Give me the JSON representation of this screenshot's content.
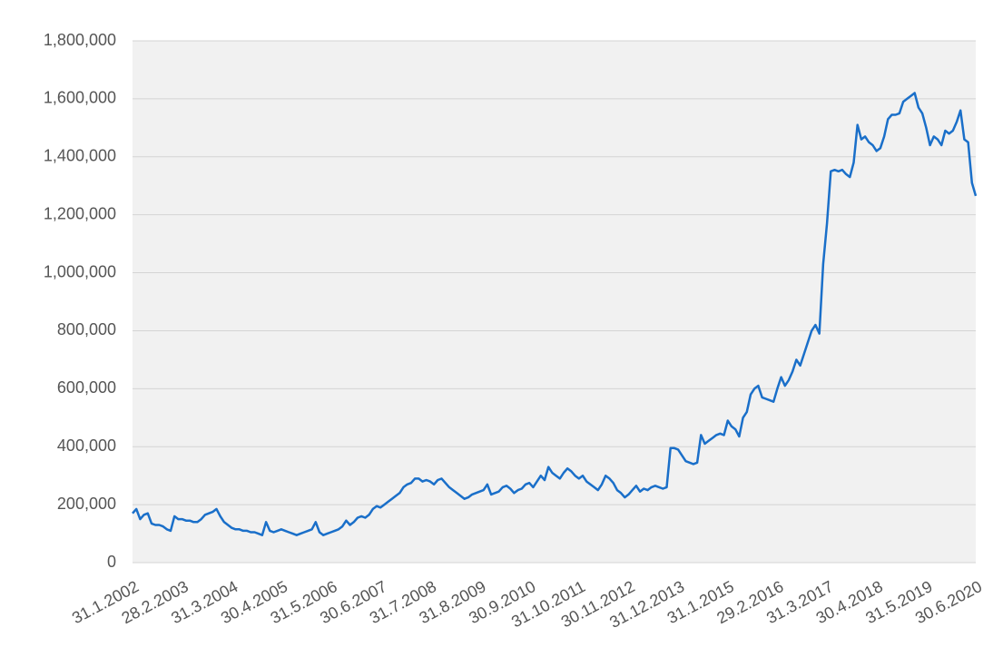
{
  "chart_data": {
    "type": "line",
    "categories": [
      "31.1.2002",
      null,
      null,
      null,
      null,
      null,
      null,
      null,
      null,
      null,
      null,
      null,
      null,
      "28.2.2003",
      null,
      null,
      null,
      null,
      null,
      null,
      null,
      null,
      null,
      null,
      null,
      null,
      "31.3.2004",
      null,
      null,
      null,
      null,
      null,
      null,
      null,
      null,
      null,
      null,
      null,
      null,
      "30.4.2005",
      null,
      null,
      null,
      null,
      null,
      null,
      null,
      null,
      null,
      null,
      null,
      null,
      "31.5.2006",
      null,
      null,
      null,
      null,
      null,
      null,
      null,
      null,
      null,
      null,
      null,
      null,
      "30.6.2007",
      null,
      null,
      null,
      null,
      null,
      null,
      null,
      null,
      null,
      null,
      null,
      null,
      "31.7.2008",
      null,
      null,
      null,
      null,
      null,
      null,
      null,
      null,
      null,
      null,
      null,
      null,
      "31.8.2009",
      null,
      null,
      null,
      null,
      null,
      null,
      null,
      null,
      null,
      null,
      null,
      null,
      "30.9.2010",
      null,
      null,
      null,
      null,
      null,
      null,
      null,
      null,
      null,
      null,
      null,
      null,
      "31.10.2011",
      null,
      null,
      null,
      null,
      null,
      null,
      null,
      null,
      null,
      null,
      null,
      null,
      "30.11.2012",
      null,
      null,
      null,
      null,
      null,
      null,
      null,
      null,
      null,
      null,
      null,
      null,
      "31.12.2013",
      null,
      null,
      null,
      null,
      null,
      null,
      null,
      null,
      null,
      null,
      null,
      null,
      "31.1.2015",
      null,
      null,
      null,
      null,
      null,
      null,
      null,
      null,
      null,
      null,
      null,
      null,
      "29.2.2016",
      null,
      null,
      null,
      null,
      null,
      null,
      null,
      null,
      null,
      null,
      null,
      null,
      "31.3.2017",
      null,
      null,
      null,
      null,
      null,
      null,
      null,
      null,
      null,
      null,
      null,
      null,
      "30.4.2018",
      null,
      null,
      null,
      null,
      null,
      null,
      null,
      null,
      null,
      null,
      null,
      null,
      "31.5.2019",
      null,
      null,
      null,
      null,
      null,
      null,
      null,
      null,
      null,
      null,
      null,
      null,
      "30.6.2020"
    ],
    "series": [
      {
        "color": "#1a6fc9",
        "values": [
          170000,
          185000,
          150000,
          165000,
          170000,
          135000,
          130000,
          130000,
          125000,
          115000,
          110000,
          160000,
          150000,
          150000,
          145000,
          145000,
          140000,
          140000,
          150000,
          165000,
          170000,
          175000,
          185000,
          160000,
          140000,
          130000,
          120000,
          115000,
          115000,
          110000,
          110000,
          105000,
          105000,
          100000,
          95000,
          140000,
          110000,
          105000,
          110000,
          115000,
          110000,
          105000,
          100000,
          95000,
          100000,
          105000,
          110000,
          115000,
          140000,
          105000,
          95000,
          100000,
          105000,
          110000,
          115000,
          125000,
          145000,
          130000,
          140000,
          155000,
          160000,
          155000,
          165000,
          185000,
          195000,
          190000,
          200000,
          210000,
          220000,
          230000,
          240000,
          260000,
          270000,
          275000,
          290000,
          290000,
          280000,
          285000,
          280000,
          270000,
          285000,
          290000,
          275000,
          260000,
          250000,
          240000,
          230000,
          220000,
          225000,
          235000,
          240000,
          245000,
          250000,
          270000,
          235000,
          240000,
          245000,
          260000,
          265000,
          255000,
          240000,
          250000,
          255000,
          270000,
          275000,
          260000,
          280000,
          300000,
          285000,
          330000,
          310000,
          300000,
          290000,
          310000,
          325000,
          315000,
          300000,
          290000,
          300000,
          280000,
          270000,
          260000,
          250000,
          270000,
          300000,
          290000,
          275000,
          250000,
          240000,
          225000,
          235000,
          250000,
          265000,
          245000,
          255000,
          250000,
          260000,
          265000,
          260000,
          255000,
          260000,
          395000,
          395000,
          390000,
          370000,
          350000,
          345000,
          340000,
          345000,
          440000,
          410000,
          420000,
          430000,
          440000,
          445000,
          440000,
          490000,
          470000,
          460000,
          435000,
          500000,
          520000,
          580000,
          600000,
          610000,
          570000,
          565000,
          560000,
          555000,
          600000,
          640000,
          610000,
          630000,
          660000,
          700000,
          680000,
          720000,
          760000,
          800000,
          820000,
          790000,
          1030000,
          1170000,
          1350000,
          1355000,
          1350000,
          1355000,
          1340000,
          1330000,
          1380000,
          1510000,
          1460000,
          1470000,
          1450000,
          1440000,
          1420000,
          1430000,
          1470000,
          1530000,
          1545000,
          1545000,
          1550000,
          1590000,
          1600000,
          1610000,
          1620000,
          1570000,
          1550000,
          1500000,
          1440000,
          1470000,
          1460000,
          1440000,
          1490000,
          1480000,
          1490000,
          1520000,
          1560000,
          1460000,
          1450000,
          1310000,
          1265000
        ]
      }
    ],
    "ylim": [
      0,
      1800000
    ],
    "yticks": [
      0,
      {
        "value": 200000,
        "label": "200,000"
      },
      {
        "value": 400000,
        "label": "400,000"
      },
      {
        "value": 600000,
        "label": "600,000"
      },
      {
        "value": 800000,
        "label": "800,000"
      },
      {
        "value": 1000000,
        "label": "1,000,000"
      },
      {
        "value": 1200000,
        "label": "1,200,000"
      },
      {
        "value": 1400000,
        "label": "1,400,000"
      },
      {
        "value": 1600000,
        "label": "1,600,000"
      },
      {
        "value": 1800000,
        "label": "1,800,000"
      }
    ],
    "grid": true
  }
}
